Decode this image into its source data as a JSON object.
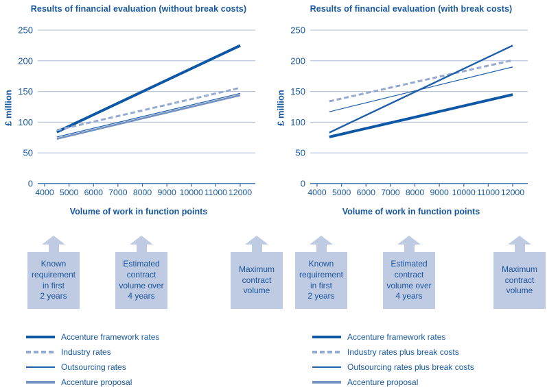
{
  "colors": {
    "navy_text": "#17579e",
    "grid_line": "#a9bcda",
    "axis_line": "#2e68ac",
    "box_fill": "#bfcbe3",
    "box_text": "#1a549c",
    "thick_line": "#0d57a5",
    "dashed_line": "#94aad2",
    "thin_line": "#2161aa",
    "steel_line": "#7492c2"
  },
  "chart_data": [
    {
      "type": "line",
      "title": "Results of financial evaluation (without break costs)",
      "xlabel": "Volume of work in function points",
      "ylabel": "£ million",
      "xlim": [
        4000,
        12000
      ],
      "ylim": [
        0,
        250
      ],
      "xticks": [
        4000,
        5000,
        6000,
        7000,
        8000,
        9000,
        10000,
        11000,
        12000
      ],
      "yticks": [
        0,
        50,
        100,
        150,
        200,
        250
      ],
      "grid": true,
      "series": [
        {
          "name": "Accenture framework rates",
          "color": "#0d57a5",
          "width": 4,
          "dash": "",
          "points": [
            [
              4500,
              84
            ],
            [
              12000,
              225
            ]
          ]
        },
        {
          "name": "Industry rates",
          "color": "#94aad2",
          "width": 3,
          "dash": "7,4",
          "points": [
            [
              4500,
              87
            ],
            [
              12000,
              156
            ]
          ]
        },
        {
          "name": "Outsourcing rates",
          "color": "#2161aa",
          "width": 1.2,
          "dash": "",
          "points": [
            [
              4500,
              76
            ],
            [
              12000,
              147
            ]
          ]
        },
        {
          "name": "Accenture proposal",
          "color": "#7492c2",
          "width": 2.8,
          "dash": "",
          "points": [
            [
              4500,
              73
            ],
            [
              12000,
              144
            ]
          ]
        }
      ]
    },
    {
      "type": "line",
      "title": "Results of financial evaluation (with break costs)",
      "xlabel": "Volume of work in function points",
      "ylabel": "£ million",
      "xlim": [
        4000,
        12000
      ],
      "ylim": [
        0,
        250
      ],
      "xticks": [
        4000,
        5000,
        6000,
        7000,
        8000,
        9000,
        10000,
        11000,
        12000
      ],
      "yticks": [
        0,
        50,
        100,
        150,
        200,
        250
      ],
      "grid": true,
      "series": [
        {
          "name": "Accenture framework rates",
          "color": "#0d57a5",
          "width": 4,
          "dash": "",
          "points": [
            [
              4500,
              76
            ],
            [
              12000,
              145
            ]
          ]
        },
        {
          "name": "Industry rates plus break costs",
          "color": "#94aad2",
          "width": 3,
          "dash": "7,4",
          "points": [
            [
              4500,
              134
            ],
            [
              12000,
              201
            ]
          ]
        },
        {
          "name": "Outsourcing rates plus break costs",
          "color": "#2161aa",
          "width": 1.2,
          "dash": "",
          "points": [
            [
              4500,
              117
            ],
            [
              12000,
              190
            ]
          ]
        },
        {
          "name": "Accenture proposal",
          "color": "#1d5ea9",
          "width": 2.4,
          "dash": "",
          "points": [
            [
              4500,
              83
            ],
            [
              12000,
              225
            ]
          ]
        }
      ]
    }
  ],
  "annotations": {
    "left": [
      {
        "label": "Known\nrequirement\nin first\n2 years"
      },
      {
        "label": "Estimated\ncontract\nvolume over\n4 years"
      },
      {
        "label": "Maximum\ncontract\nvolume"
      }
    ],
    "right": [
      {
        "label": "Known\nrequirement\nin first\n2 years"
      },
      {
        "label": "Estimated\ncontract\nvolume over\n4 years"
      },
      {
        "label": "Maximum\ncontract\nvolume"
      }
    ]
  },
  "legends": [
    {
      "entries": [
        {
          "label": "Accenture framework rates",
          "color": "#0d57a5",
          "thickness": 4,
          "dashed": false
        },
        {
          "label": "Industry rates",
          "color": "#94aad2",
          "thickness": 4,
          "dashed": true
        },
        {
          "label": "Outsourcing rates",
          "color": "#2161aa",
          "thickness": 1.5,
          "dashed": false
        },
        {
          "label": "Accenture proposal",
          "color": "#7492c2",
          "thickness": 4,
          "dashed": false
        }
      ]
    },
    {
      "entries": [
        {
          "label": "Accenture framework rates",
          "color": "#0d57a5",
          "thickness": 4,
          "dashed": false
        },
        {
          "label": "Industry rates plus break costs",
          "color": "#94aad2",
          "thickness": 4,
          "dashed": true
        },
        {
          "label": "Outsourcing rates plus break costs",
          "color": "#2161aa",
          "thickness": 1.5,
          "dashed": false
        },
        {
          "label": "Accenture proposal",
          "color": "#7492c2",
          "thickness": 4,
          "dashed": false
        }
      ]
    }
  ]
}
